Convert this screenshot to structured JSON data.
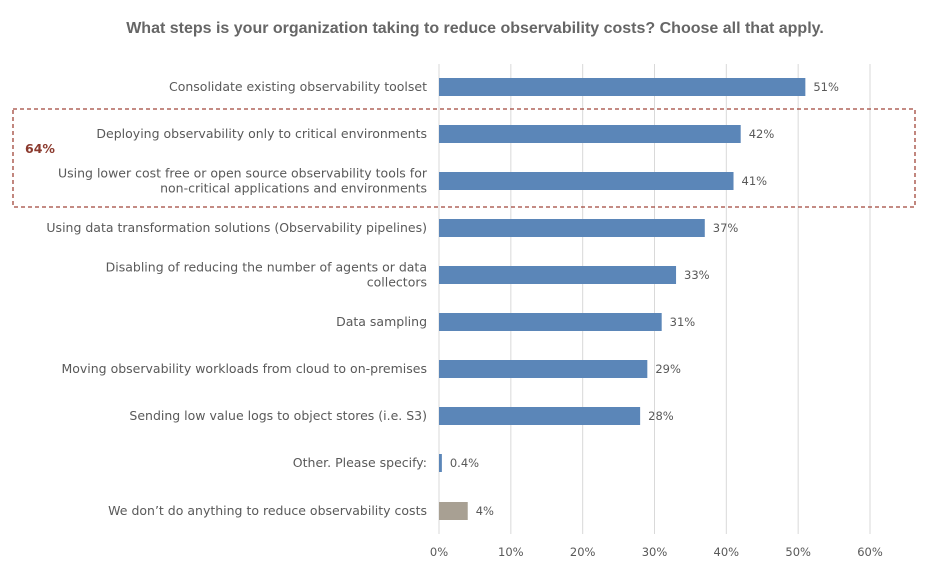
{
  "chart_data": {
    "type": "bar",
    "orientation": "horizontal",
    "title": "What steps is your organization taking to reduce observability costs? Choose all that apply.",
    "xlim": [
      0,
      60
    ],
    "x_ticks": [
      0,
      10,
      20,
      30,
      40,
      50,
      60
    ],
    "x_tick_labels": [
      "0%",
      "10%",
      "20%",
      "30%",
      "40%",
      "50%",
      "60%"
    ],
    "grid": true,
    "categories": [
      [
        "Consolidate existing observability toolset"
      ],
      [
        "Deploying observability only to critical environments"
      ],
      [
        "Using lower cost free or open source observability tools for",
        "non-critical applications and environments"
      ],
      [
        "Using data transformation solutions (Observability pipelines)"
      ],
      [
        "Disabling of reducing the number of agents or data",
        "collectors"
      ],
      [
        "Data sampling"
      ],
      [
        "Moving observability workloads from cloud to on-premises"
      ],
      [
        "Sending low value logs to object stores (i.e. S3)"
      ],
      [
        "Other. Please specify:"
      ],
      [
        "We don’t do anything to reduce observability costs"
      ]
    ],
    "values": [
      51,
      42,
      41,
      37,
      33,
      31,
      29,
      28,
      0.4,
      4
    ],
    "value_labels": [
      "51%",
      "42%",
      "41%",
      "37%",
      "33%",
      "31%",
      "29%",
      "28%",
      "0.4%",
      "4%"
    ],
    "bar_colors": [
      "#5B86B8",
      "#5B86B8",
      "#5B86B8",
      "#5B86B8",
      "#5B86B8",
      "#5B86B8",
      "#5B86B8",
      "#5B86B8",
      "#5B86B8",
      "#A8A093"
    ],
    "highlight_group": {
      "label": "64%",
      "from_index": 1,
      "to_index": 2,
      "color": "#A0463A"
    }
  }
}
